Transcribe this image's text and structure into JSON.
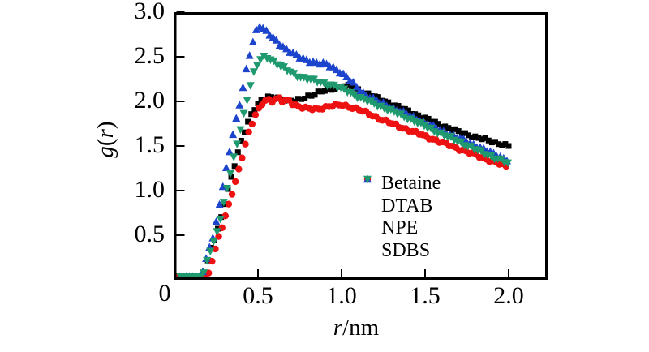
{
  "figure": {
    "background": "#ffffff",
    "axis_color": "#000000",
    "ylabel_parts": {
      "func": "g",
      "open": "(",
      "arg": "r",
      "close": ")"
    },
    "xlabel_parts": {
      "italic": "r",
      "normal": "/nm"
    }
  },
  "chart_data": {
    "type": "scatter",
    "title": "",
    "xlabel": "r/nm",
    "ylabel": "g(r)",
    "xlim": [
      0,
      2.23
    ],
    "ylim": [
      0,
      3.0
    ],
    "grid": false,
    "legend_position": "inside lower-right",
    "origin_label": "0",
    "x_ticks": [
      0.5,
      1.0,
      1.5,
      2.0
    ],
    "x_tick_labels": [
      "0.5",
      "1.0",
      "1.5",
      "2.0"
    ],
    "y_ticks": [
      0.5,
      1.0,
      1.5,
      2.0,
      2.5,
      3.0
    ],
    "y_tick_labels": [
      "0.5",
      "1.0",
      "1.5",
      "2.0",
      "2.5",
      "3.0"
    ],
    "marker_step": 0.02,
    "series": [
      {
        "name": "Betaine",
        "marker": "square",
        "color": "#000000",
        "points": [
          [
            0.02,
            0.04
          ],
          [
            0.18,
            0.04
          ],
          [
            0.21,
            0.3
          ],
          [
            0.25,
            0.5
          ],
          [
            0.28,
            0.7
          ],
          [
            0.31,
            0.95
          ],
          [
            0.34,
            1.15
          ],
          [
            0.37,
            1.35
          ],
          [
            0.4,
            1.55
          ],
          [
            0.43,
            1.72
          ],
          [
            0.46,
            1.86
          ],
          [
            0.49,
            1.95
          ],
          [
            0.52,
            2.01
          ],
          [
            0.56,
            2.04
          ],
          [
            0.6,
            2.05
          ],
          [
            0.64,
            2.03
          ],
          [
            0.68,
            2.01
          ],
          [
            0.72,
            2.0
          ],
          [
            0.76,
            2.03
          ],
          [
            0.8,
            2.06
          ],
          [
            0.84,
            2.08
          ],
          [
            0.88,
            2.11
          ],
          [
            0.92,
            2.13
          ],
          [
            0.96,
            2.15
          ],
          [
            1.0,
            2.17
          ],
          [
            1.04,
            2.17
          ],
          [
            1.08,
            2.15
          ],
          [
            1.12,
            2.11
          ],
          [
            1.16,
            2.08
          ],
          [
            1.2,
            2.05
          ],
          [
            1.3,
            1.97
          ],
          [
            1.4,
            1.89
          ],
          [
            1.5,
            1.81
          ],
          [
            1.6,
            1.73
          ],
          [
            1.7,
            1.66
          ],
          [
            1.8,
            1.6
          ],
          [
            1.9,
            1.55
          ],
          [
            2.0,
            1.5
          ]
        ]
      },
      {
        "name": "DTAB",
        "marker": "circle",
        "color": "#ee1111",
        "points": [
          [
            0.02,
            0.04
          ],
          [
            0.2,
            0.04
          ],
          [
            0.23,
            0.25
          ],
          [
            0.26,
            0.45
          ],
          [
            0.29,
            0.62
          ],
          [
            0.32,
            0.8
          ],
          [
            0.35,
            1.0
          ],
          [
            0.38,
            1.2
          ],
          [
            0.41,
            1.42
          ],
          [
            0.44,
            1.62
          ],
          [
            0.47,
            1.78
          ],
          [
            0.5,
            1.9
          ],
          [
            0.53,
            1.99
          ],
          [
            0.56,
            2.03
          ],
          [
            0.59,
            2.0
          ],
          [
            0.62,
            2.04
          ],
          [
            0.65,
            1.99
          ],
          [
            0.68,
            2.02
          ],
          [
            0.71,
            1.97
          ],
          [
            0.75,
            1.94
          ],
          [
            0.79,
            1.92
          ],
          [
            0.83,
            1.91
          ],
          [
            0.87,
            1.92
          ],
          [
            0.91,
            1.94
          ],
          [
            0.95,
            1.95
          ],
          [
            1.0,
            1.96
          ],
          [
            1.05,
            1.94
          ],
          [
            1.1,
            1.91
          ],
          [
            1.15,
            1.87
          ],
          [
            1.2,
            1.83
          ],
          [
            1.3,
            1.75
          ],
          [
            1.4,
            1.68
          ],
          [
            1.5,
            1.61
          ],
          [
            1.6,
            1.54
          ],
          [
            1.7,
            1.47
          ],
          [
            1.8,
            1.4
          ],
          [
            1.9,
            1.33
          ],
          [
            2.0,
            1.26
          ]
        ]
      },
      {
        "name": "NPE",
        "marker": "triangle-up",
        "color": "#1c44cc",
        "points": [
          [
            0.02,
            0.04
          ],
          [
            0.16,
            0.04
          ],
          [
            0.18,
            0.15
          ],
          [
            0.2,
            0.32
          ],
          [
            0.22,
            0.42
          ],
          [
            0.24,
            0.52
          ],
          [
            0.26,
            0.75
          ],
          [
            0.28,
            0.95
          ],
          [
            0.3,
            1.15
          ],
          [
            0.32,
            1.35
          ],
          [
            0.34,
            1.55
          ],
          [
            0.36,
            1.72
          ],
          [
            0.38,
            1.88
          ],
          [
            0.4,
            2.05
          ],
          [
            0.42,
            2.25
          ],
          [
            0.44,
            2.45
          ],
          [
            0.46,
            2.6
          ],
          [
            0.48,
            2.74
          ],
          [
            0.5,
            2.86
          ],
          [
            0.52,
            2.84
          ],
          [
            0.54,
            2.8
          ],
          [
            0.58,
            2.73
          ],
          [
            0.62,
            2.66
          ],
          [
            0.66,
            2.6
          ],
          [
            0.7,
            2.55
          ],
          [
            0.74,
            2.5
          ],
          [
            0.78,
            2.47
          ],
          [
            0.82,
            2.45
          ],
          [
            0.86,
            2.43
          ],
          [
            0.9,
            2.42
          ],
          [
            0.94,
            2.39
          ],
          [
            0.98,
            2.35
          ],
          [
            1.02,
            2.29
          ],
          [
            1.06,
            2.22
          ],
          [
            1.1,
            2.14
          ],
          [
            1.14,
            2.08
          ],
          [
            1.18,
            2.04
          ],
          [
            1.22,
            2.0
          ],
          [
            1.3,
            1.93
          ],
          [
            1.4,
            1.85
          ],
          [
            1.5,
            1.76
          ],
          [
            1.6,
            1.67
          ],
          [
            1.7,
            1.59
          ],
          [
            1.8,
            1.51
          ],
          [
            1.9,
            1.42
          ],
          [
            2.0,
            1.34
          ]
        ]
      },
      {
        "name": "SDBS",
        "marker": "triangle-down",
        "color": "#1e9a6e",
        "points": [
          [
            0.02,
            0.04
          ],
          [
            0.17,
            0.04
          ],
          [
            0.2,
            0.25
          ],
          [
            0.24,
            0.45
          ],
          [
            0.27,
            0.65
          ],
          [
            0.3,
            0.9
          ],
          [
            0.33,
            1.15
          ],
          [
            0.36,
            1.4
          ],
          [
            0.39,
            1.65
          ],
          [
            0.42,
            1.9
          ],
          [
            0.45,
            2.15
          ],
          [
            0.48,
            2.35
          ],
          [
            0.51,
            2.46
          ],
          [
            0.54,
            2.5
          ],
          [
            0.57,
            2.48
          ],
          [
            0.6,
            2.44
          ],
          [
            0.64,
            2.39
          ],
          [
            0.68,
            2.34
          ],
          [
            0.72,
            2.3
          ],
          [
            0.76,
            2.27
          ],
          [
            0.8,
            2.25
          ],
          [
            0.84,
            2.23
          ],
          [
            0.88,
            2.21
          ],
          [
            0.92,
            2.19
          ],
          [
            0.96,
            2.17
          ],
          [
            1.0,
            2.14
          ],
          [
            1.04,
            2.11
          ],
          [
            1.08,
            2.07
          ],
          [
            1.12,
            2.03
          ],
          [
            1.16,
            2.0
          ],
          [
            1.2,
            1.97
          ],
          [
            1.3,
            1.89
          ],
          [
            1.4,
            1.81
          ],
          [
            1.5,
            1.72
          ],
          [
            1.6,
            1.63
          ],
          [
            1.7,
            1.55
          ],
          [
            1.8,
            1.46
          ],
          [
            1.9,
            1.38
          ],
          [
            2.0,
            1.3
          ]
        ]
      }
    ]
  }
}
